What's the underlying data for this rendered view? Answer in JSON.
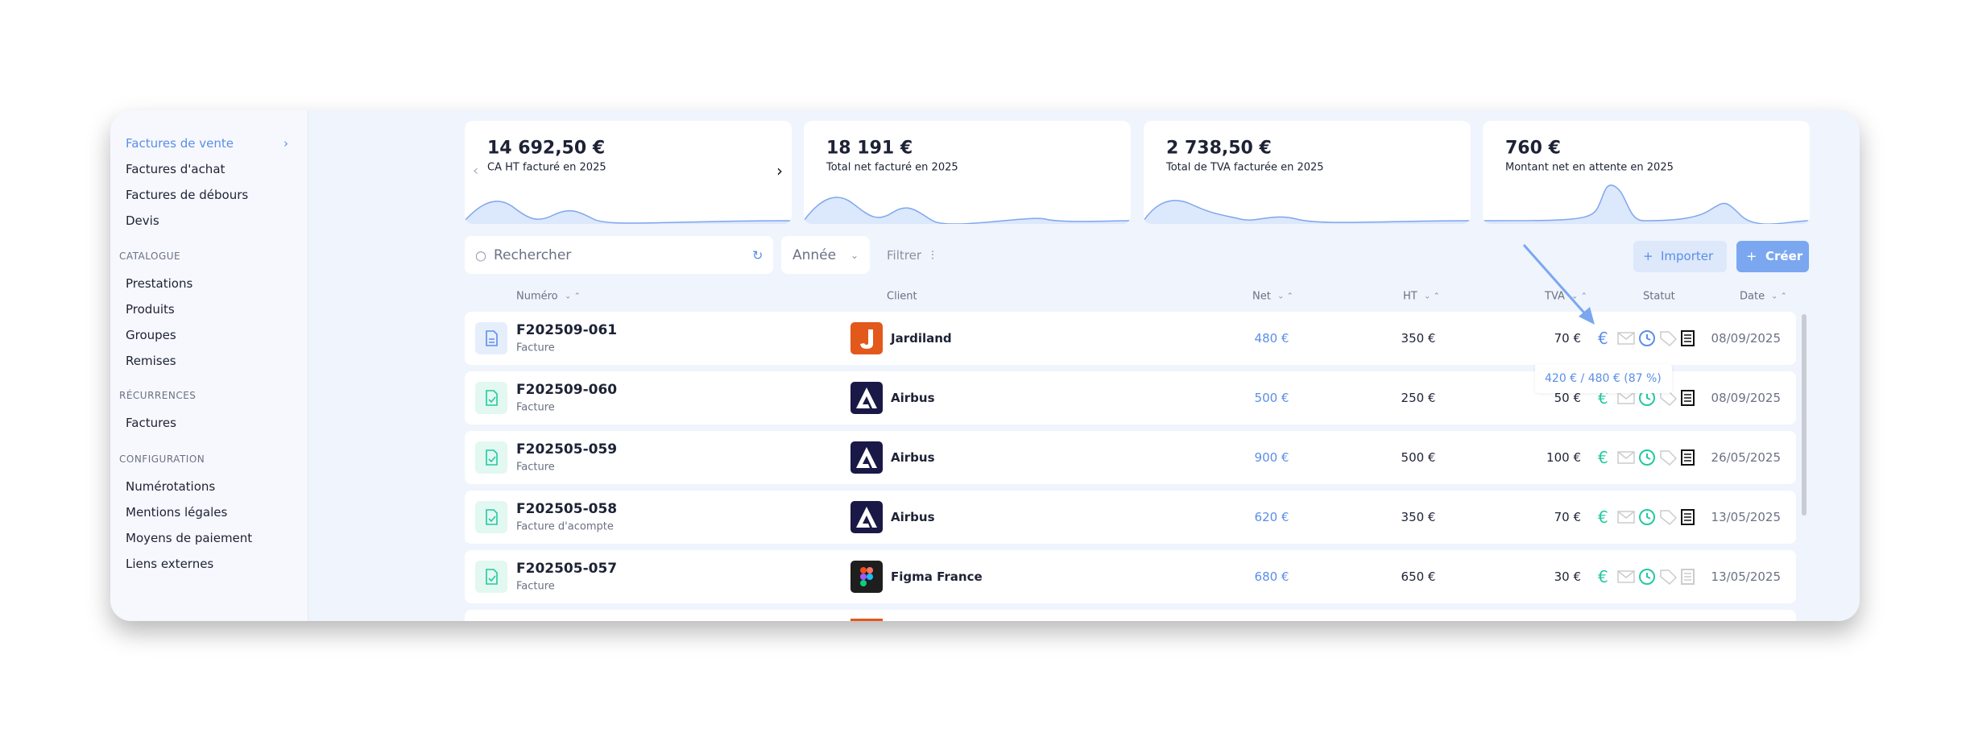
{
  "sidebar": {
    "items": [
      "Factures de vente",
      "Factures d'achat",
      "Factures de débours",
      "Devis"
    ],
    "sections": [
      {
        "title": "CATALOGUE",
        "items": [
          "Prestations",
          "Produits",
          "Groupes",
          "Remises"
        ]
      },
      {
        "title": "RÉCURRENCES",
        "items": [
          "Factures"
        ]
      },
      {
        "title": "CONFIGURATION",
        "items": [
          "Numérotations",
          "Mentions légales",
          "Moyens de paiement",
          "Liens externes"
        ]
      }
    ]
  },
  "kpis": [
    {
      "value": "14 692,50 €",
      "label": "CA HT facturé en 2025"
    },
    {
      "value": "18 191 €",
      "label": "Total net facturé en 2025"
    },
    {
      "value": "2 738,50 €",
      "label": "Total de TVA facturée en 2025"
    },
    {
      "value": "760 €",
      "label": "Montant net en attente en 2025"
    }
  ],
  "toolbar": {
    "search": "Rechercher",
    "year": "Année",
    "filter": "Filtrer",
    "import": "Importer",
    "create": "Créer"
  },
  "table": {
    "headers": [
      "Numéro",
      "Client",
      "Net",
      "HT",
      "TVA",
      "Statut",
      "Date"
    ],
    "rows": [
      {
        "number": "F202509-061",
        "type": "Facture",
        "client": "Jardiland",
        "net": "480 €",
        "ht": "350 €",
        "tva": "70 €",
        "date": "08/09/2025"
      },
      {
        "number": "F202509-060",
        "type": "Facture",
        "client": "Airbus",
        "net": "500 €",
        "ht": "250 €",
        "tva": "50 €",
        "date": "08/09/2025"
      },
      {
        "number": "F202505-059",
        "type": "Facture",
        "client": "Airbus",
        "net": "900 €",
        "ht": "500 €",
        "tva": "100 €",
        "date": "26/05/2025"
      },
      {
        "number": "F202505-058",
        "type": "Facture d'acompte",
        "client": "Airbus",
        "net": "620 €",
        "ht": "350 €",
        "tva": "70 €",
        "date": "13/05/2025"
      },
      {
        "number": "F202505-057",
        "type": "Facture",
        "client": "Figma France",
        "net": "680 €",
        "ht": "650 €",
        "tva": "30 €",
        "date": "13/05/2025"
      }
    ]
  },
  "tooltip": "420 € / 480 € (87 %)"
}
